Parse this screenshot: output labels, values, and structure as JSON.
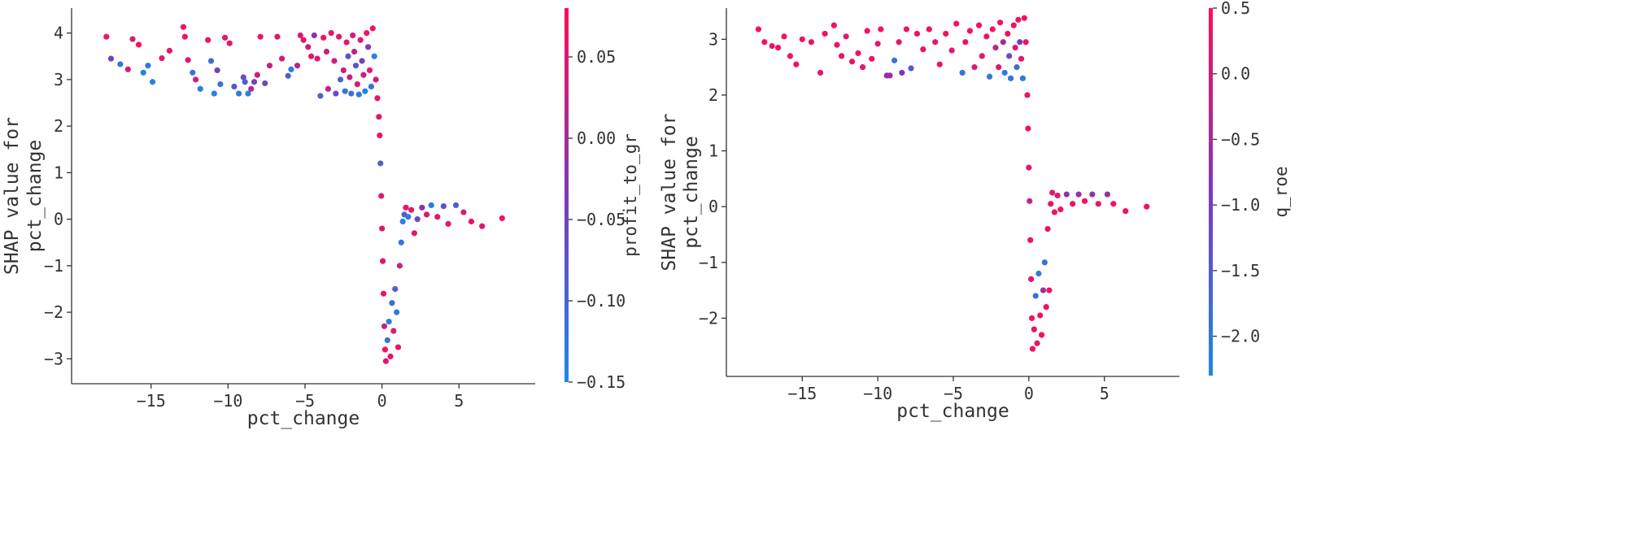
{
  "colors": {
    "low": "#1e88e5",
    "mid": "#7c3ab8",
    "high": "#ff0d57",
    "axis": "#333333"
  },
  "chart_data": [
    {
      "type": "scatter",
      "xlabel": "pct_change",
      "ylabel_lines": [
        "SHAP value for",
        "pct_change"
      ],
      "xlim": [
        -19,
        9
      ],
      "ylim": [
        -3.5,
        4.5
      ],
      "xticks": [
        -15,
        -10,
        -5,
        0,
        5
      ],
      "xtick_labels": [
        "−15",
        "−10",
        "−5",
        "0",
        "5"
      ],
      "yticks": [
        -3,
        -2,
        -1,
        0,
        1,
        2,
        3,
        4
      ],
      "ytick_labels": [
        "−3",
        "−2",
        "−1",
        "0",
        "1",
        "2",
        "3",
        "4"
      ],
      "colorbar": {
        "label": "profit_to_gr",
        "range": [
          -0.15,
          0.08
        ],
        "ticks": [
          0.05,
          0.0,
          -0.05,
          -0.1,
          -0.15
        ],
        "tick_labels": [
          "0.05",
          "0.00",
          "−0.05",
          "−0.10",
          "−0.15"
        ]
      },
      "points": [
        [
          -17.9,
          3.92,
          0.06
        ],
        [
          -17.6,
          3.45,
          -0.05
        ],
        [
          -17.0,
          3.33,
          -0.13
        ],
        [
          -16.5,
          3.22,
          0.05
        ],
        [
          -16.2,
          3.87,
          0.04
        ],
        [
          -15.5,
          3.15,
          -0.14
        ],
        [
          -15.8,
          3.75,
          0.07
        ],
        [
          -15.2,
          3.3,
          -0.12
        ],
        [
          -14.9,
          2.95,
          -0.14
        ],
        [
          -14.3,
          3.46,
          0.05
        ],
        [
          -13.8,
          3.62,
          0.06
        ],
        [
          -12.9,
          4.13,
          0.07
        ],
        [
          -12.8,
          3.92,
          0.07
        ],
        [
          -12.6,
          3.42,
          0.04
        ],
        [
          -12.3,
          3.15,
          -0.12
        ],
        [
          -12.1,
          3.0,
          0.03
        ],
        [
          -11.8,
          2.8,
          -0.14
        ],
        [
          -11.3,
          3.85,
          0.06
        ],
        [
          -11.1,
          3.4,
          -0.11
        ],
        [
          -10.9,
          2.7,
          -0.14
        ],
        [
          -10.7,
          3.2,
          -0.05
        ],
        [
          -10.5,
          2.9,
          -0.12
        ],
        [
          -10.2,
          3.9,
          0.05
        ],
        [
          -9.9,
          3.78,
          0.06
        ],
        [
          -9.6,
          2.85,
          -0.08
        ],
        [
          -9.3,
          2.7,
          -0.13
        ],
        [
          -9.0,
          3.05,
          -0.07
        ],
        [
          -8.9,
          2.95,
          -0.09
        ],
        [
          -8.7,
          2.7,
          -0.14
        ],
        [
          -8.5,
          2.8,
          0.02
        ],
        [
          -8.3,
          2.95,
          -0.05
        ],
        [
          -8.1,
          3.1,
          0.04
        ],
        [
          -7.9,
          3.92,
          0.06
        ],
        [
          -7.6,
          2.92,
          -0.06
        ],
        [
          -7.3,
          3.3,
          0.03
        ],
        [
          -6.8,
          3.92,
          0.05
        ],
        [
          -6.5,
          3.45,
          0.04
        ],
        [
          -6.1,
          3.08,
          -0.09
        ],
        [
          -5.9,
          3.22,
          -0.13
        ],
        [
          -5.5,
          3.3,
          0.02
        ],
        [
          -5.3,
          3.95,
          0.05
        ],
        [
          -5.1,
          3.85,
          0.06
        ],
        [
          -4.8,
          3.7,
          0.04
        ],
        [
          -4.6,
          3.5,
          0.06
        ],
        [
          -4.4,
          3.95,
          -0.02
        ],
        [
          -4.2,
          3.45,
          0.05
        ],
        [
          -4.0,
          2.65,
          -0.09
        ],
        [
          -3.8,
          3.9,
          0.06
        ],
        [
          -3.6,
          3.6,
          0.04
        ],
        [
          -3.5,
          2.8,
          0.02
        ],
        [
          -3.3,
          4.0,
          0.06
        ],
        [
          -3.1,
          3.4,
          0.03
        ],
        [
          -3.0,
          2.7,
          -0.06
        ],
        [
          -2.8,
          3.92,
          0.05
        ],
        [
          -2.7,
          3.0,
          -0.1
        ],
        [
          -2.5,
          3.2,
          0.04
        ],
        [
          -2.4,
          2.75,
          -0.12
        ],
        [
          -2.3,
          3.8,
          0.06
        ],
        [
          -2.2,
          3.5,
          -0.07
        ],
        [
          -2.1,
          3.05,
          0.03
        ],
        [
          -2.0,
          2.7,
          -0.11
        ],
        [
          -1.9,
          3.95,
          0.05
        ],
        [
          -1.8,
          3.6,
          0.02
        ],
        [
          -1.7,
          3.3,
          -0.08
        ],
        [
          -1.6,
          2.9,
          0.04
        ],
        [
          -1.5,
          2.68,
          -0.13
        ],
        [
          -1.4,
          3.85,
          0.06
        ],
        [
          -1.3,
          3.4,
          -0.05
        ],
        [
          -1.2,
          3.1,
          0.03
        ],
        [
          -1.1,
          2.75,
          -0.14
        ],
        [
          -1.0,
          4.0,
          0.07
        ],
        [
          -0.9,
          3.7,
          -0.03
        ],
        [
          -0.8,
          3.2,
          0.05
        ],
        [
          -0.7,
          2.85,
          -0.12
        ],
        [
          -0.6,
          4.1,
          0.06
        ],
        [
          -0.5,
          3.5,
          -0.14
        ],
        [
          -0.4,
          3.0,
          0.04
        ],
        [
          -0.3,
          2.6,
          0.06
        ],
        [
          -0.2,
          2.2,
          0.05
        ],
        [
          -0.15,
          1.8,
          0.06
        ],
        [
          -0.1,
          1.2,
          -0.1
        ],
        [
          -0.05,
          0.5,
          0.05
        ],
        [
          0.0,
          -0.2,
          0.06
        ],
        [
          0.05,
          -0.9,
          0.05
        ],
        [
          0.1,
          -1.6,
          0.06
        ],
        [
          0.15,
          -2.3,
          0.04
        ],
        [
          0.2,
          -2.8,
          0.07
        ],
        [
          0.25,
          -3.05,
          0.05
        ],
        [
          0.35,
          -2.6,
          -0.12
        ],
        [
          0.45,
          -2.2,
          -0.14
        ],
        [
          0.55,
          -2.95,
          0.06
        ],
        [
          0.65,
          -1.8,
          -0.11
        ],
        [
          0.75,
          -2.4,
          0.05
        ],
        [
          0.85,
          -1.5,
          -0.08
        ],
        [
          0.95,
          -2.0,
          -0.13
        ],
        [
          1.05,
          -2.75,
          0.06
        ],
        [
          1.15,
          -1.0,
          0.02
        ],
        [
          1.25,
          -0.5,
          -0.12
        ],
        [
          1.35,
          -0.05,
          -0.14
        ],
        [
          1.45,
          0.1,
          -0.09
        ],
        [
          1.55,
          0.25,
          0.06
        ],
        [
          1.7,
          0.05,
          -0.13
        ],
        [
          1.9,
          0.2,
          0.05
        ],
        [
          2.1,
          -0.3,
          0.06
        ],
        [
          2.3,
          0.0,
          -0.06
        ],
        [
          2.6,
          0.25,
          -0.02
        ],
        [
          2.9,
          0.1,
          0.05
        ],
        [
          3.2,
          0.3,
          -0.13
        ],
        [
          3.6,
          0.05,
          0.06
        ],
        [
          4.0,
          0.28,
          -0.07
        ],
        [
          4.3,
          -0.1,
          0.05
        ],
        [
          4.8,
          0.3,
          -0.09
        ],
        [
          5.3,
          0.15,
          0.04
        ],
        [
          5.8,
          -0.05,
          0.06
        ],
        [
          6.5,
          -0.15,
          0.06
        ],
        [
          7.8,
          0.02,
          0.07
        ]
      ]
    },
    {
      "type": "scatter",
      "xlabel": "pct_change",
      "ylabel_lines": [
        "SHAP value for",
        "pct_change"
      ],
      "xlim": [
        -19,
        9
      ],
      "ylim": [
        -3.0,
        3.5
      ],
      "xticks": [
        -15,
        -10,
        -5,
        0,
        5
      ],
      "xtick_labels": [
        "−15",
        "−10",
        "−5",
        "0",
        "5"
      ],
      "yticks": [
        -2,
        -1,
        0,
        1,
        2,
        3
      ],
      "ytick_labels": [
        "−2",
        "−1",
        "0",
        "1",
        "2",
        "3"
      ],
      "colorbar": {
        "label": "q_roe",
        "range": [
          -2.3,
          0.5
        ],
        "ticks": [
          0.5,
          0.0,
          -0.5,
          -1.0,
          -1.5,
          -2.0
        ],
        "tick_labels": [
          "0.5",
          "0.0",
          "−0.5",
          "−1.0",
          "−1.5",
          "−2.0"
        ]
      },
      "points": [
        [
          -17.9,
          3.18,
          0.4
        ],
        [
          -17.5,
          2.95,
          0.3
        ],
        [
          -17.0,
          2.88,
          0.2
        ],
        [
          -16.6,
          2.85,
          0.3
        ],
        [
          -16.2,
          3.05,
          0.4
        ],
        [
          -15.8,
          2.7,
          0.2
        ],
        [
          -15.4,
          2.55,
          0.3
        ],
        [
          -15.0,
          3.0,
          0.4
        ],
        [
          -14.4,
          2.95,
          0.3
        ],
        [
          -13.8,
          2.4,
          0.2
        ],
        [
          -13.5,
          3.1,
          0.4
        ],
        [
          -12.9,
          3.25,
          0.4
        ],
        [
          -12.7,
          2.9,
          0.3
        ],
        [
          -12.4,
          2.7,
          0.2
        ],
        [
          -12.1,
          3.05,
          0.1
        ],
        [
          -11.7,
          2.6,
          0.3
        ],
        [
          -11.3,
          2.75,
          0.4
        ],
        [
          -11.0,
          2.5,
          0.2
        ],
        [
          -10.7,
          3.15,
          0.4
        ],
        [
          -10.4,
          2.65,
          0.3
        ],
        [
          -10.0,
          2.92,
          0.2
        ],
        [
          -9.8,
          3.18,
          0.4
        ],
        [
          -9.4,
          2.35,
          -0.8
        ],
        [
          -9.2,
          2.35,
          -0.5
        ],
        [
          -8.9,
          2.62,
          -1.9
        ],
        [
          -8.6,
          2.95,
          0.3
        ],
        [
          -8.4,
          2.4,
          -0.9
        ],
        [
          -8.1,
          3.18,
          0.4
        ],
        [
          -7.8,
          2.48,
          -1.5
        ],
        [
          -7.4,
          3.1,
          0.3
        ],
        [
          -7.0,
          2.82,
          0.2
        ],
        [
          -6.6,
          3.18,
          0.4
        ],
        [
          -6.2,
          2.95,
          0.1
        ],
        [
          -5.9,
          2.55,
          0.3
        ],
        [
          -5.5,
          3.1,
          0.4
        ],
        [
          -5.1,
          2.8,
          0.2
        ],
        [
          -4.8,
          3.28,
          0.4
        ],
        [
          -4.4,
          2.4,
          -1.9
        ],
        [
          -4.2,
          2.95,
          0.3
        ],
        [
          -3.9,
          3.15,
          0.4
        ],
        [
          -3.6,
          2.5,
          0.1
        ],
        [
          -3.3,
          3.25,
          0.4
        ],
        [
          -3.1,
          2.7,
          0.2
        ],
        [
          -2.8,
          3.05,
          0.3
        ],
        [
          -2.6,
          2.33,
          -2.0
        ],
        [
          -2.4,
          3.18,
          0.4
        ],
        [
          -2.2,
          2.85,
          -0.3
        ],
        [
          -2.0,
          2.5,
          0.2
        ],
        [
          -1.9,
          3.3,
          0.4
        ],
        [
          -1.7,
          2.95,
          -0.6
        ],
        [
          -1.6,
          2.4,
          -2.1
        ],
        [
          -1.4,
          3.1,
          0.3
        ],
        [
          -1.3,
          2.7,
          -1.2
        ],
        [
          -1.2,
          2.3,
          -2.0
        ],
        [
          -1.0,
          3.25,
          0.4
        ],
        [
          -0.9,
          2.85,
          0.1
        ],
        [
          -0.8,
          2.5,
          -1.8
        ],
        [
          -0.7,
          3.35,
          0.3
        ],
        [
          -0.6,
          2.95,
          -0.9
        ],
        [
          -0.5,
          2.65,
          0.2
        ],
        [
          -0.4,
          2.3,
          -2.0
        ],
        [
          -0.3,
          3.38,
          0.4
        ],
        [
          -0.2,
          2.95,
          0.2
        ],
        [
          -0.1,
          2.0,
          0.3
        ],
        [
          -0.05,
          1.4,
          0.3
        ],
        [
          0.0,
          0.7,
          0.2
        ],
        [
          0.05,
          0.1,
          -0.2
        ],
        [
          0.1,
          -0.6,
          0.3
        ],
        [
          0.15,
          -1.3,
          0.2
        ],
        [
          0.2,
          -2.0,
          0.4
        ],
        [
          0.25,
          -2.55,
          0.4
        ],
        [
          0.35,
          -2.2,
          0.3
        ],
        [
          0.45,
          -1.6,
          -1.9
        ],
        [
          0.55,
          -2.45,
          0.3
        ],
        [
          0.65,
          -1.2,
          -2.0
        ],
        [
          0.75,
          -1.95,
          0.2
        ],
        [
          0.85,
          -2.3,
          0.4
        ],
        [
          0.95,
          -1.5,
          -0.5
        ],
        [
          1.05,
          -1.0,
          -1.9
        ],
        [
          1.15,
          -1.8,
          0.3
        ],
        [
          1.25,
          -0.4,
          0.3
        ],
        [
          1.35,
          -1.5,
          0.4
        ],
        [
          1.45,
          0.05,
          0.3
        ],
        [
          1.55,
          0.25,
          0.2
        ],
        [
          1.7,
          -0.1,
          0.4
        ],
        [
          1.9,
          0.2,
          0.1
        ],
        [
          2.1,
          -0.05,
          0.3
        ],
        [
          2.5,
          0.22,
          -0.8
        ],
        [
          2.9,
          0.05,
          0.3
        ],
        [
          3.3,
          0.22,
          -0.5
        ],
        [
          3.7,
          0.1,
          0.3
        ],
        [
          4.2,
          0.22,
          -0.7
        ],
        [
          4.6,
          0.05,
          0.2
        ],
        [
          5.2,
          0.22,
          -0.6
        ],
        [
          5.6,
          0.05,
          0.3
        ],
        [
          6.4,
          -0.08,
          0.4
        ],
        [
          7.8,
          0.0,
          0.4
        ]
      ]
    }
  ]
}
